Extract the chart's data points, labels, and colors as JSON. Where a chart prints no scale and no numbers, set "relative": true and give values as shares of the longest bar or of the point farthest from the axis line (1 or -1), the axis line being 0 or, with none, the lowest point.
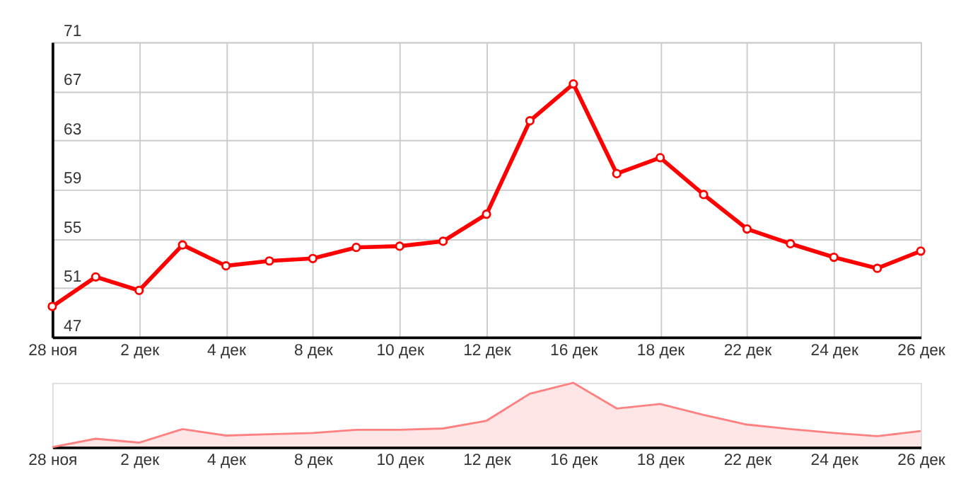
{
  "chart_data": [
    {
      "type": "line",
      "categories": [
        "28 ноя",
        null,
        "2 дек",
        null,
        "4 дек",
        null,
        "8 дек",
        null,
        "10 дек",
        null,
        "12 дек",
        null,
        "16 дек",
        null,
        "18 дек",
        null,
        "22 дек",
        null,
        "24 дек",
        null,
        "26 дек"
      ],
      "series": [
        {
          "color": "#ff0000",
          "values": [
            49.5,
            51.9,
            50.8,
            54.5,
            52.8,
            53.2,
            53.4,
            54.3,
            54.4,
            54.8,
            57.0,
            64.6,
            67.6,
            60.3,
            61.6,
            58.6,
            55.8,
            54.6,
            53.5,
            52.6,
            54.0
          ]
        }
      ],
      "ylim": [
        47,
        71
      ],
      "yticks": [
        47,
        51,
        55,
        59,
        63,
        67,
        71
      ],
      "grid": true,
      "legend": false,
      "marker": "circle",
      "line_style": "solid"
    },
    {
      "type": "area",
      "relative": true,
      "categories": [
        "28 ноя",
        null,
        "2 дек",
        null,
        "4 дек",
        null,
        "8 дек",
        null,
        "10 дек",
        null,
        "12 дек",
        null,
        "16 дек",
        null,
        "18 дек",
        null,
        "22 дек",
        null,
        "24 дек",
        null,
        "26 дек"
      ],
      "series": [
        {
          "color": "#ff8080",
          "values": [
            0,
            0.13,
            0.07,
            0.28,
            0.18,
            0.2,
            0.22,
            0.27,
            0.27,
            0.29,
            0.41,
            0.83,
            1,
            0.6,
            0.67,
            0.5,
            0.35,
            0.28,
            0.22,
            0.17,
            0.25
          ]
        }
      ],
      "grid": false,
      "legend": false,
      "marker": "none",
      "tick_labels": "x"
    }
  ]
}
